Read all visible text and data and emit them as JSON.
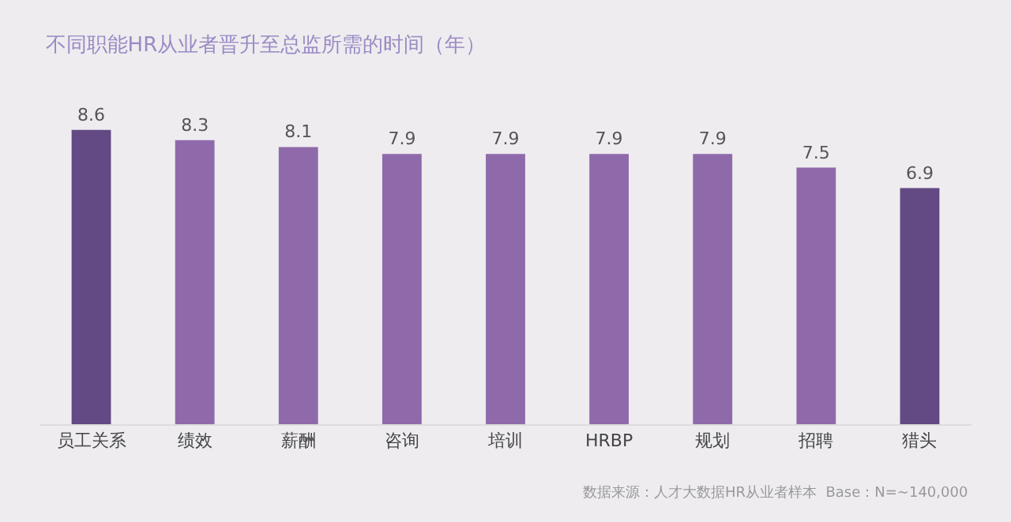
{
  "chart_data": {
    "type": "bar",
    "title": "不同职能HR从业者晋升至总监所需的时间（年）",
    "categories": [
      "员工关系",
      "绩效",
      "薪酬",
      "咨询",
      "培训",
      "HRBP",
      "规划",
      "招聘",
      "猎头"
    ],
    "values": [
      8.6,
      8.3,
      8.1,
      7.9,
      7.9,
      7.9,
      7.9,
      7.5,
      6.9
    ],
    "colors": [
      "#634a84",
      "#8f6aab",
      "#8f6aab",
      "#8f6aab",
      "#8f6aab",
      "#8f6aab",
      "#8f6aab",
      "#8f6aab",
      "#634a84"
    ],
    "data_labels": true,
    "annotations": [
      "数据来源：人才大数据HR从业者样本  Base：N=~140,000"
    ]
  }
}
